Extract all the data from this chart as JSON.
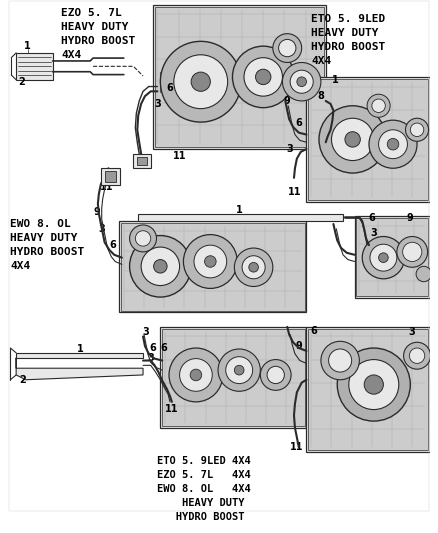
{
  "bg_color": "#ffffff",
  "line_color": "#2a2a2a",
  "text_color": "#000000",
  "gray_fill": "#d8d8d8",
  "light_gray": "#e8e8e8",
  "figsize": [
    4.38,
    5.33
  ],
  "dpi": 100,
  "labels": {
    "top_left_label": "EZO 5. 7L\nHEAVY DUTY\nHYDRO BOOST\n4X4",
    "top_right_label": "ETO 5. 9LED\nHEAVY DUTY\nHYDRO BOOST\n4X4",
    "mid_left_label": "EWO 8. OL\nHEAVY DUTY\nHYDRO BOOST\n4X4",
    "bottom_label": "ETO 5. 9LED 4X4\nEZO 5. 7L   4X4\nEWO 8. OL   4X4\n    HEAVY DUTY\n   HYDRO BOOST"
  }
}
